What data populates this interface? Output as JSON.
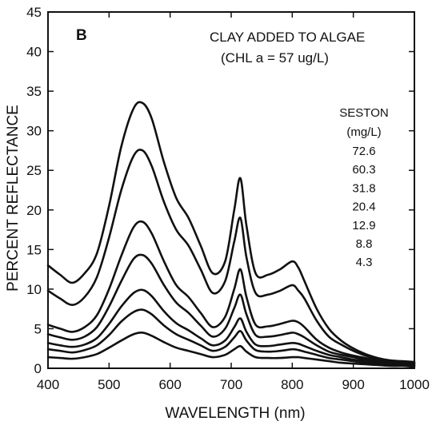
{
  "chart_data": {
    "type": "line",
    "panel_label": "B",
    "title": "CLAY ADDED TO ALGAE",
    "subtitle": "(CHL a = 57 ug/L)",
    "xlabel": "WAVELENGTH (nm)",
    "ylabel": "PERCENT REFLECTANCE",
    "xlim": [
      400,
      1000
    ],
    "ylim": [
      0,
      45
    ],
    "xticks": [
      400,
      500,
      600,
      700,
      800,
      900,
      1000
    ],
    "yticks": [
      0,
      5,
      10,
      15,
      20,
      25,
      30,
      35,
      40,
      45
    ],
    "legend_title": "SESTON",
    "legend_unit": "(mg/L)",
    "legend_placement": "right",
    "grid": false,
    "x": [
      400,
      420,
      440,
      460,
      480,
      500,
      520,
      540,
      555,
      570,
      590,
      610,
      630,
      650,
      670,
      690,
      705,
      715,
      725,
      740,
      760,
      780,
      800,
      810,
      820,
      840,
      860,
      880,
      900,
      920,
      940,
      960,
      980,
      1000
    ],
    "series": [
      {
        "name": "72.6",
        "values": [
          13.0,
          11.8,
          10.8,
          12.0,
          14.5,
          20.5,
          28.0,
          32.8,
          33.5,
          31.5,
          26.0,
          21.5,
          19.0,
          15.5,
          12.0,
          13.5,
          20.0,
          24.0,
          18.0,
          12.0,
          11.8,
          12.5,
          13.5,
          12.7,
          11.0,
          7.5,
          5.0,
          3.5,
          2.5,
          1.8,
          1.3,
          1.0,
          0.9,
          0.8
        ]
      },
      {
        "name": "60.3",
        "values": [
          9.8,
          8.8,
          8.0,
          9.0,
          11.5,
          16.5,
          22.5,
          26.8,
          27.5,
          25.5,
          21.0,
          17.5,
          15.5,
          12.5,
          9.5,
          11.0,
          16.0,
          19.0,
          14.0,
          9.5,
          9.3,
          9.8,
          10.5,
          9.8,
          8.8,
          6.0,
          4.0,
          3.0,
          2.2,
          1.6,
          1.2,
          0.9,
          0.8,
          0.7
        ]
      },
      {
        "name": "31.8",
        "values": [
          5.5,
          5.0,
          4.6,
          5.2,
          6.7,
          10.0,
          14.2,
          17.8,
          18.5,
          17.0,
          13.5,
          10.5,
          9.0,
          7.0,
          5.2,
          6.5,
          10.0,
          12.5,
          9.0,
          5.5,
          5.3,
          5.6,
          6.0,
          5.8,
          5.2,
          3.6,
          2.6,
          2.0,
          1.6,
          1.3,
          1.0,
          0.8,
          0.7,
          0.6
        ]
      },
      {
        "name": "20.4",
        "values": [
          4.3,
          3.9,
          3.6,
          4.0,
          5.2,
          7.8,
          11.0,
          13.8,
          14.3,
          13.2,
          10.5,
          8.3,
          7.0,
          5.4,
          4.0,
          5.0,
          7.6,
          9.3,
          6.8,
          4.2,
          4.0,
          4.2,
          4.5,
          4.3,
          3.9,
          2.9,
          2.1,
          1.7,
          1.4,
          1.1,
          0.9,
          0.7,
          0.6,
          0.5
        ]
      },
      {
        "name": "12.9",
        "values": [
          3.2,
          2.9,
          2.7,
          3.0,
          3.8,
          5.6,
          7.8,
          9.5,
          9.9,
          9.1,
          7.2,
          5.7,
          4.8,
          3.8,
          2.9,
          3.5,
          5.2,
          6.3,
          4.6,
          3.0,
          2.8,
          3.0,
          3.2,
          3.1,
          2.8,
          2.2,
          1.7,
          1.4,
          1.1,
          0.9,
          0.7,
          0.6,
          0.5,
          0.4
        ]
      },
      {
        "name": "8.8",
        "values": [
          2.4,
          2.2,
          2.0,
          2.3,
          2.9,
          4.2,
          5.9,
          7.1,
          7.4,
          6.8,
          5.4,
          4.3,
          3.6,
          2.9,
          2.2,
          2.7,
          3.9,
          4.7,
          3.5,
          2.3,
          2.1,
          2.2,
          2.4,
          2.3,
          2.1,
          1.7,
          1.3,
          1.1,
          0.9,
          0.7,
          0.6,
          0.5,
          0.4,
          0.3
        ]
      },
      {
        "name": "4.3",
        "values": [
          1.4,
          1.3,
          1.2,
          1.4,
          1.8,
          2.6,
          3.5,
          4.3,
          4.5,
          4.1,
          3.3,
          2.6,
          2.2,
          1.8,
          1.4,
          1.7,
          2.4,
          2.8,
          2.1,
          1.4,
          1.3,
          1.3,
          1.4,
          1.4,
          1.3,
          1.1,
          0.9,
          0.7,
          0.6,
          0.5,
          0.4,
          0.3,
          0.3,
          0.2
        ]
      }
    ]
  }
}
